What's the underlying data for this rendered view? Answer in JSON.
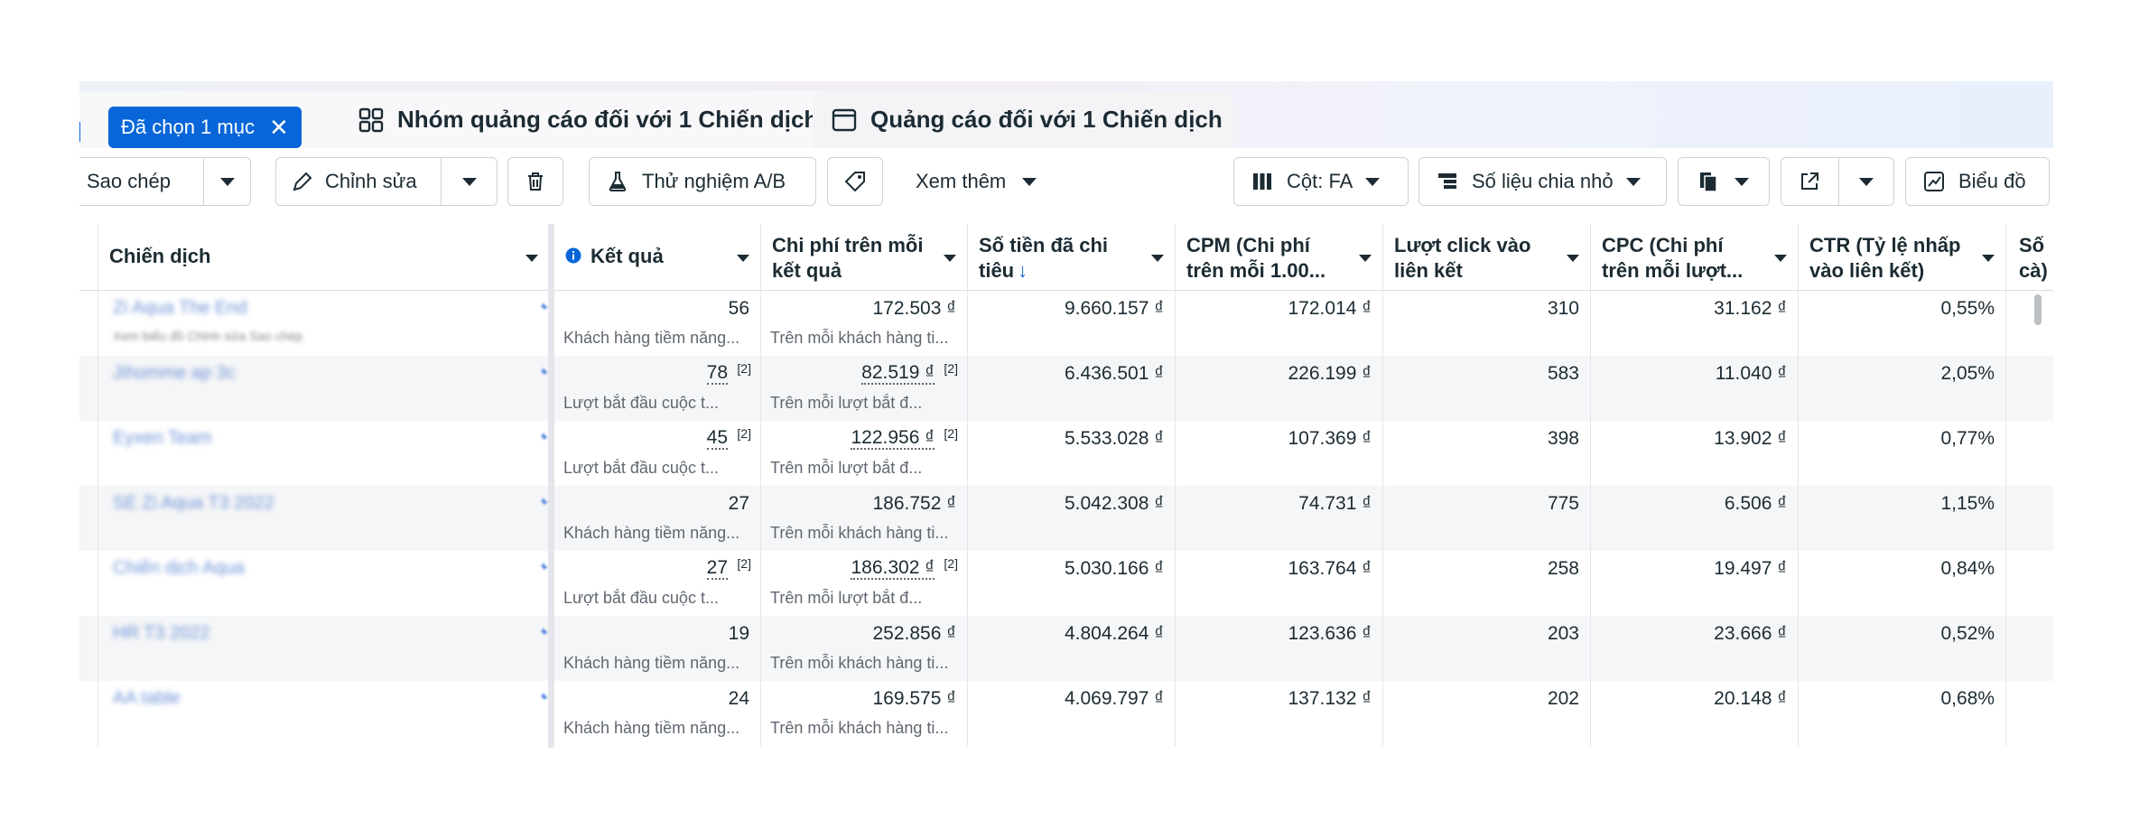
{
  "tabs": {
    "selected_chip": "Đã chọn 1 mục",
    "adset_tab": "Nhóm quảng cáo đối với 1 Chiến dịch",
    "ad_tab": "Quảng cáo đối với 1 Chiến dịch"
  },
  "toolbar": {
    "copy": "Sao chép",
    "edit": "Chỉnh sửa",
    "ab_test": "Thử nghiệm A/B",
    "more": "Xem thêm",
    "columns": "Cột: FA",
    "breakdown": "Số liệu chia nhỏ",
    "chart": "Biểu đồ"
  },
  "columns": {
    "campaign": "Chiến dịch",
    "results": "Kết quả",
    "cost_per_result_1": "Chi phí trên mỗi",
    "cost_per_result_2": "kết quả",
    "spent_1": "Số tiền đã chi",
    "spent_2": "tiêu",
    "cpm_1": "CPM (Chi phí",
    "cpm_2": "trên mỗi 1.00...",
    "clicks_1": "Lượt click vào",
    "clicks_2": "liên kết",
    "cpc_1": "CPC (Chi phí",
    "cpc_2": "trên mỗi lượt...",
    "ctr_1": "CTR (Tỷ lệ nhấp",
    "ctr_2": "vào liên kết)",
    "next_1": "Số",
    "next_2": "cà)"
  },
  "rows": [
    {
      "campaign": "Zi Aqua The End",
      "meta": "Xem biểu đồ  Chỉnh sửa  Sao chép",
      "result": "56",
      "result_sup": "",
      "result_sub": "Khách hàng tiềm năng...",
      "cpr": "172.503 ₫",
      "cpr_sup": "",
      "cpr_sub": "Trên mỗi khách hàng ti...",
      "spent": "9.660.157 ₫",
      "cpm": "172.014 ₫",
      "clicks": "310",
      "cpc": "31.162 ₫",
      "ctr": "0,55%"
    },
    {
      "campaign": "Jihomme ap 3c",
      "meta": "",
      "result": "78",
      "result_sup": "[2]",
      "result_sub": "Lượt bắt đầu cuộc t...",
      "cpr": "82.519 ₫",
      "cpr_sup": "[2]",
      "cpr_sub": "Trên mỗi lượt bắt đ...",
      "spent": "6.436.501 ₫",
      "cpm": "226.199 ₫",
      "clicks": "583",
      "cpc": "11.040 ₫",
      "ctr": "2,05%"
    },
    {
      "campaign": "Eyxen Team",
      "meta": "",
      "result": "45",
      "result_sup": "[2]",
      "result_sub": "Lượt bắt đầu cuộc t...",
      "cpr": "122.956 ₫",
      "cpr_sup": "[2]",
      "cpr_sub": "Trên mỗi lượt bắt đ...",
      "spent": "5.533.028 ₫",
      "cpm": "107.369 ₫",
      "clicks": "398",
      "cpc": "13.902 ₫",
      "ctr": "0,77%"
    },
    {
      "campaign": "SE Zi Aqua T3 2022",
      "meta": "",
      "result": "27",
      "result_sup": "",
      "result_sub": "Khách hàng tiềm năng...",
      "cpr": "186.752 ₫",
      "cpr_sup": "",
      "cpr_sub": "Trên mỗi khách hàng ti...",
      "spent": "5.042.308 ₫",
      "cpm": "74.731 ₫",
      "clicks": "775",
      "cpc": "6.506 ₫",
      "ctr": "1,15%"
    },
    {
      "campaign": "Chiến dịch Aqua",
      "meta": "",
      "result": "27",
      "result_sup": "[2]",
      "result_sub": "Lượt bắt đầu cuộc t...",
      "cpr": "186.302 ₫",
      "cpr_sup": "[2]",
      "cpr_sub": "Trên mỗi lượt bắt đ...",
      "spent": "5.030.166 ₫",
      "cpm": "163.764 ₫",
      "clicks": "258",
      "cpc": "19.497 ₫",
      "ctr": "0,84%"
    },
    {
      "campaign": "HR T3 2022",
      "meta": "",
      "result": "19",
      "result_sup": "",
      "result_sub": "Khách hàng tiềm năng...",
      "cpr": "252.856 ₫",
      "cpr_sup": "",
      "cpr_sub": "Trên mỗi khách hàng ti...",
      "spent": "4.804.264 ₫",
      "cpm": "123.636 ₫",
      "clicks": "203",
      "cpc": "23.666 ₫",
      "ctr": "0,52%"
    },
    {
      "campaign": "AA table",
      "meta": "",
      "result": "24",
      "result_sup": "",
      "result_sub": "Khách hàng tiềm năng...",
      "cpr": "169.575 ₫",
      "cpr_sup": "",
      "cpr_sub": "Trên mỗi khách hàng ti...",
      "spent": "4.069.797 ₫",
      "cpm": "137.132 ₫",
      "clicks": "202",
      "cpc": "20.148 ₫",
      "ctr": "0,68%"
    }
  ]
}
